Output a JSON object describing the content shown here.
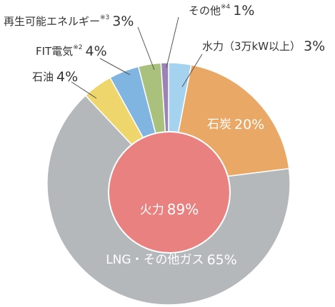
{
  "chart_data": {
    "type": "pie",
    "categories": [
      "水力（3万kW以上）",
      "石炭",
      "LNG・その他ガス",
      "石油",
      "FIT電気",
      "再生可能エネルギー",
      "その他"
    ],
    "notes": {
      "4": "※2",
      "5": "※3",
      "6": "※4"
    },
    "values": [
      3,
      20,
      65,
      4,
      4,
      3,
      1
    ],
    "value_labels": [
      "3%",
      "20%",
      "65%",
      "4%",
      "4%",
      "3%",
      "1%"
    ],
    "colors": [
      "#a5d3ef",
      "#e9a866",
      "#b4b8bb",
      "#efd66c",
      "#80b5e1",
      "#a9c17c",
      "#9a83b6"
    ],
    "inner": {
      "label": "火力",
      "value": 89,
      "value_label": "89%",
      "color": "#e8817f"
    }
  }
}
